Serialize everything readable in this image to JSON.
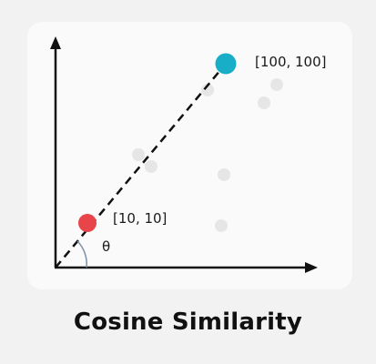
{
  "title": "Cosine Similarity",
  "diagram": {
    "vector_a": {
      "label": "[10, 10]",
      "color": "#e8454a"
    },
    "vector_b": {
      "label": "[100, 100]",
      "color": "#18aec8"
    },
    "angle_label": "θ",
    "axis_color": "#111111",
    "background_point_color": "#e6e6e6",
    "arc_color": "#7a8fa8"
  }
}
